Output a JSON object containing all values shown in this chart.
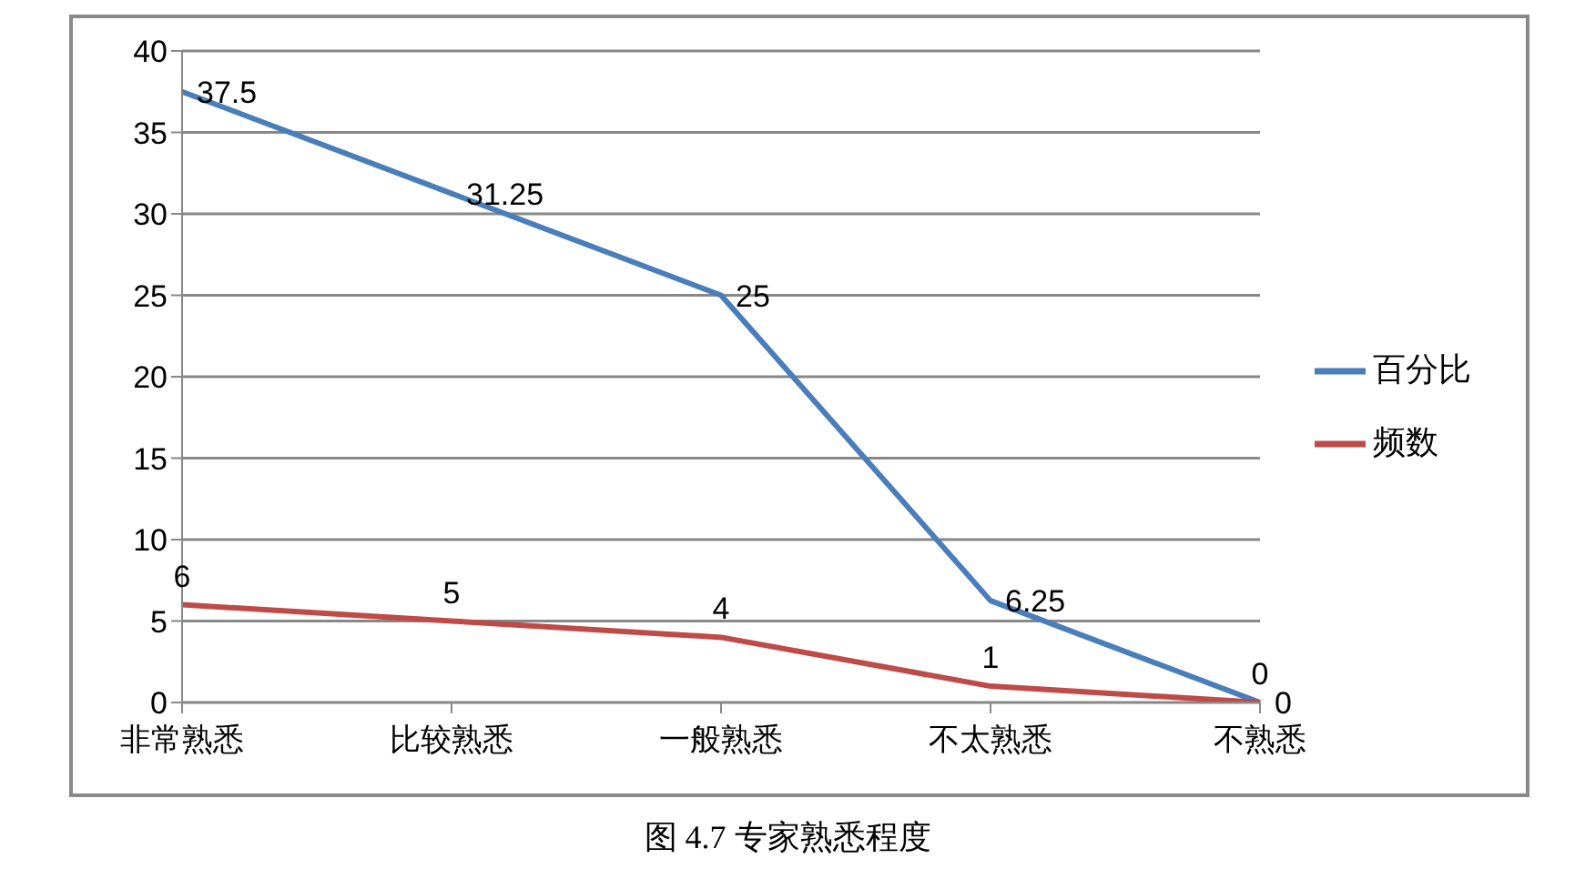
{
  "chart_data": {
    "type": "line",
    "title": "图 4.7  专家熟悉程度",
    "categories": [
      "非常熟悉",
      "比较熟悉",
      "一般熟悉",
      "不太熟悉",
      "不熟悉"
    ],
    "series": [
      {
        "name": "百分比",
        "color": "#4a7ebb",
        "values": [
          37.5,
          31.25,
          25,
          6.25,
          0
        ]
      },
      {
        "name": "频数",
        "color": "#be4b48",
        "values": [
          6,
          5,
          4,
          1,
          0
        ]
      }
    ],
    "ylim": [
      0,
      40
    ],
    "yticks": [
      0,
      5,
      10,
      15,
      20,
      25,
      30,
      35,
      40
    ],
    "grid": "y",
    "legend": "right",
    "data_labels": true,
    "marker": "none",
    "line_style": "solid"
  }
}
